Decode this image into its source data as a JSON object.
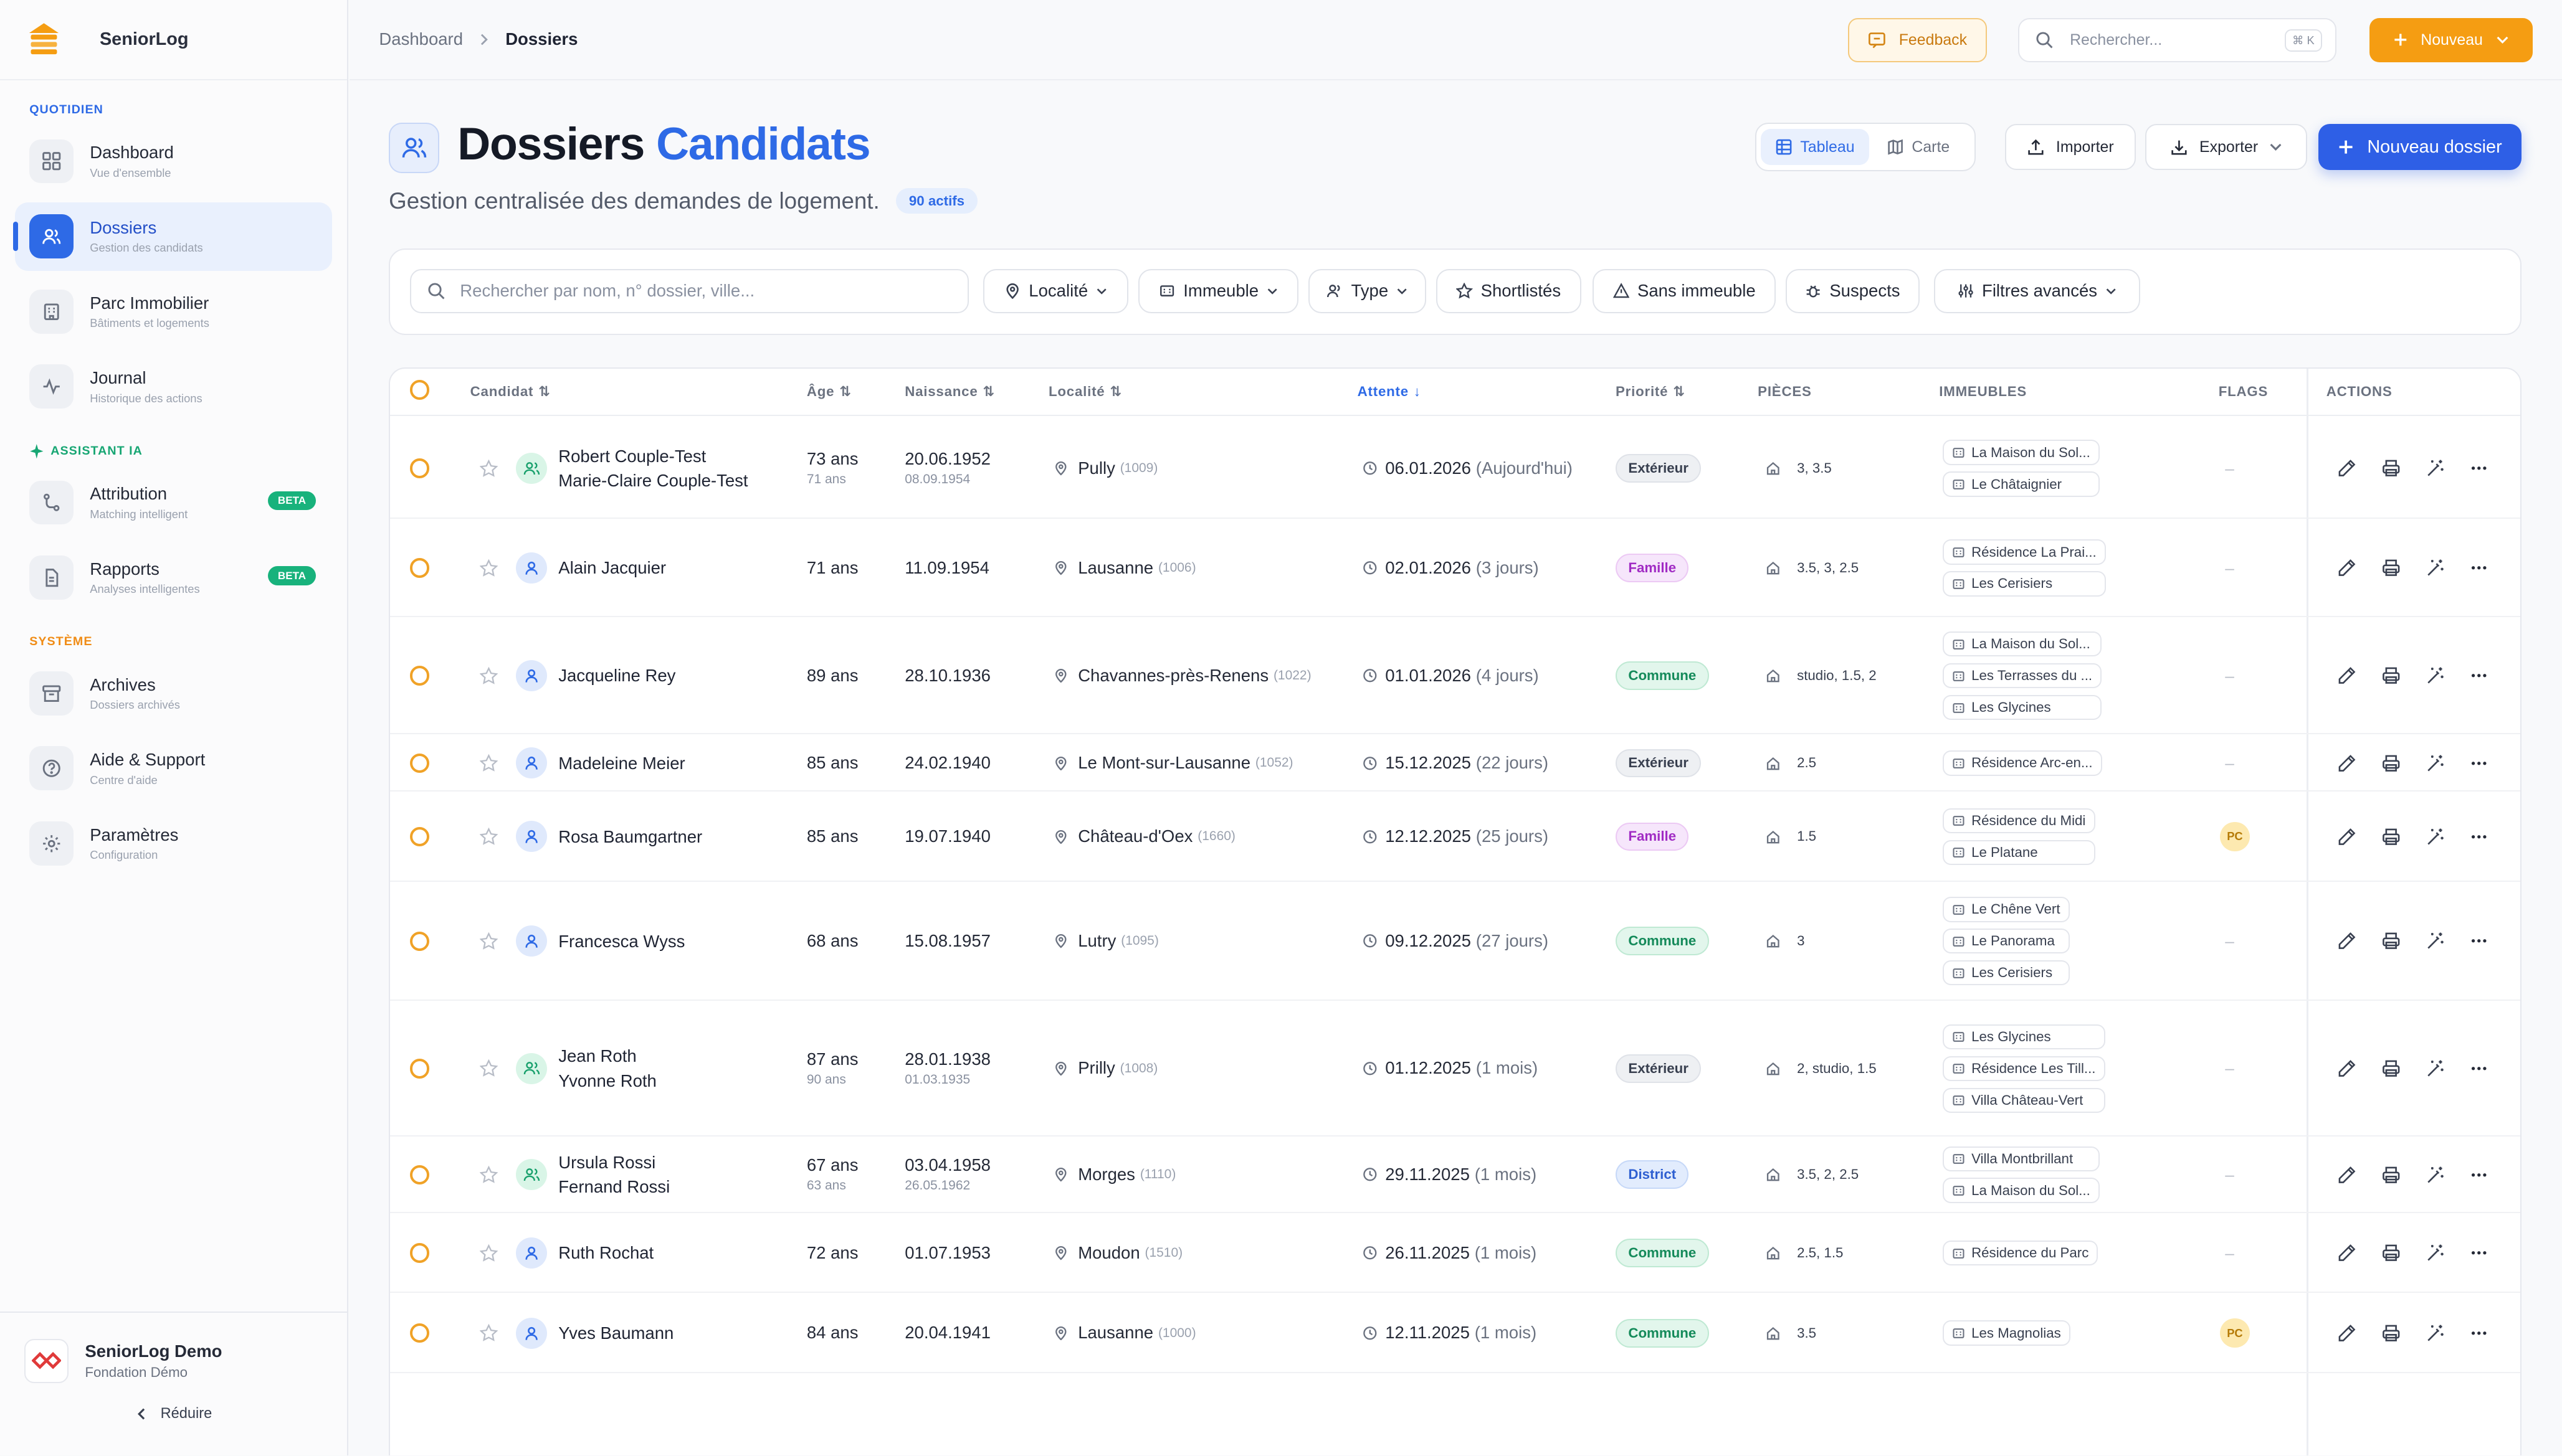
{
  "sidebar": {
    "brand": "SeniorLog",
    "sections": [
      {
        "label": "QUOTIDIEN",
        "items": [
          {
            "title": "Dashboard",
            "sub": "Vue d'ensemble",
            "icon": "grid-icon"
          },
          {
            "title": "Dossiers",
            "sub": "Gestion des candidats",
            "icon": "users-icon",
            "active": true
          },
          {
            "title": "Parc Immobilier",
            "sub": "Bâtiments et logements",
            "icon": "building-icon"
          },
          {
            "title": "Journal",
            "sub": "Historique des actions",
            "icon": "activity-icon"
          }
        ]
      },
      {
        "label": "ASSISTANT IA",
        "items": [
          {
            "title": "Attribution",
            "sub": "Matching intelligent",
            "icon": "route-icon",
            "badge": "BETA"
          },
          {
            "title": "Rapports",
            "sub": "Analyses intelligentes",
            "icon": "file-icon",
            "badge": "BETA"
          }
        ]
      },
      {
        "label": "SYSTÈME",
        "items": [
          {
            "title": "Archives",
            "sub": "Dossiers archivés",
            "icon": "archive-icon"
          },
          {
            "title": "Aide & Support",
            "sub": "Centre d'aide",
            "icon": "help-icon"
          },
          {
            "title": "Paramètres",
            "sub": "Configuration",
            "icon": "gear-icon"
          }
        ]
      }
    ],
    "org": {
      "name": "SeniorLog Demo",
      "sub": "Fondation Démo"
    },
    "reduce_label": "Réduire"
  },
  "topbar": {
    "breadcrumb": [
      "Dashboard",
      "Dossiers"
    ],
    "feedback_label": "Feedback",
    "search_placeholder": "Rechercher...",
    "search_kbd": "⌘ K",
    "new_label": "Nouveau"
  },
  "page": {
    "title_main": "Dossiers",
    "title_accent": "Candidats",
    "subtitle": "Gestion centralisée des demandes de logement.",
    "count_badge": "90 actifs",
    "view_table": "Tableau",
    "view_map": "Carte",
    "import_label": "Importer",
    "export_label": "Exporter",
    "new_dossier_label": "Nouveau dossier"
  },
  "filters": {
    "search_placeholder": "Rechercher par nom, n° dossier, ville...",
    "chips": [
      "Localité",
      "Immeuble",
      "Type",
      "Shortlistés",
      "Sans immeuble",
      "Suspects",
      "Filtres avancés"
    ]
  },
  "table": {
    "headers": {
      "candidat": "Candidat",
      "age": "Âge",
      "naissance": "Naissance",
      "localite": "Localité",
      "attente": "Attente",
      "priorite": "Priorité",
      "pieces": "PIÈCES",
      "immeubles": "IMMEUBLES",
      "flags": "FLAGS",
      "actions": "ACTIONS"
    },
    "rows": [
      {
        "names": [
          "Robert Couple-Test",
          "Marie-Claire Couple-Test"
        ],
        "couple": true,
        "age": "73 ans",
        "age2": "71 ans",
        "birth": "20.06.1952",
        "birth2": "08.09.1954",
        "city": "Pully",
        "npa": "(1009)",
        "wait": "06.01.2026",
        "wait_rel": "(Aujourd'hui)",
        "prio": "Extérieur",
        "prio_kind": "ext",
        "pieces": "3, 3.5",
        "imm": [
          "La Maison du Sol...",
          "Le Châtaignier"
        ],
        "flag": "–"
      },
      {
        "names": [
          "Alain Jacquier"
        ],
        "couple": false,
        "age": "71 ans",
        "birth": "11.09.1954",
        "city": "Lausanne",
        "npa": "(1006)",
        "wait": "02.01.2026",
        "wait_rel": "(3 jours)",
        "prio": "Famille",
        "prio_kind": "fam",
        "pieces": "3.5, 3, 2.5",
        "imm": [
          "Résidence La Prai...",
          "Les Cerisiers"
        ],
        "flag": "–"
      },
      {
        "names": [
          "Jacqueline Rey"
        ],
        "couple": false,
        "age": "89 ans",
        "birth": "28.10.1936",
        "city": "Chavannes-près-Renens",
        "npa": "(1022)",
        "wait": "01.01.2026",
        "wait_rel": "(4 jours)",
        "prio": "Commune",
        "prio_kind": "com",
        "pieces": "studio, 1.5, 2",
        "imm": [
          "La Maison du Sol...",
          "Les Terrasses du ...",
          "Les Glycines"
        ],
        "flag": "–"
      },
      {
        "names": [
          "Madeleine Meier"
        ],
        "couple": false,
        "age": "85 ans",
        "birth": "24.02.1940",
        "city": "Le Mont-sur-Lausanne",
        "npa": "(1052)",
        "wait": "15.12.2025",
        "wait_rel": "(22 jours)",
        "prio": "Extérieur",
        "prio_kind": "ext",
        "pieces": "2.5",
        "imm": [
          "Résidence Arc-en..."
        ],
        "flag": "–"
      },
      {
        "names": [
          "Rosa Baumgartner"
        ],
        "couple": false,
        "age": "85 ans",
        "birth": "19.07.1940",
        "city": "Château-d'Oex",
        "npa": "(1660)",
        "wait": "12.12.2025",
        "wait_rel": "(25 jours)",
        "prio": "Famille",
        "prio_kind": "fam",
        "pieces": "1.5",
        "imm": [
          "Résidence du Midi",
          "Le Platane"
        ],
        "flag": "PC"
      },
      {
        "names": [
          "Francesca Wyss"
        ],
        "couple": false,
        "age": "68 ans",
        "birth": "15.08.1957",
        "city": "Lutry",
        "npa": "(1095)",
        "wait": "09.12.2025",
        "wait_rel": "(27 jours)",
        "prio": "Commune",
        "prio_kind": "com",
        "pieces": "3",
        "imm": [
          "Le Chêne Vert",
          "Le Panorama",
          "Les Cerisiers"
        ],
        "flag": "–"
      },
      {
        "names": [
          "Jean Roth",
          "Yvonne Roth"
        ],
        "couple": true,
        "age": "87 ans",
        "age2": "90 ans",
        "birth": "28.01.1938",
        "birth2": "01.03.1935",
        "city": "Prilly",
        "npa": "(1008)",
        "wait": "01.12.2025",
        "wait_rel": "(1 mois)",
        "prio": "Extérieur",
        "prio_kind": "ext",
        "pieces": "2, studio, 1.5",
        "imm": [
          "Les Glycines",
          "Résidence Les Till...",
          "Villa Château-Vert"
        ],
        "flag": "–"
      },
      {
        "names": [
          "Ursula Rossi",
          "Fernand Rossi"
        ],
        "couple": true,
        "age": "67 ans",
        "age2": "63 ans",
        "birth": "03.04.1958",
        "birth2": "26.05.1962",
        "city": "Morges",
        "npa": "(1110)",
        "wait": "29.11.2025",
        "wait_rel": "(1 mois)",
        "prio": "District",
        "prio_kind": "dis",
        "pieces": "3.5, 2, 2.5",
        "imm": [
          "Villa Montbrillant",
          "La Maison du Sol..."
        ],
        "flag": "–"
      },
      {
        "names": [
          "Ruth Rochat"
        ],
        "couple": false,
        "age": "72 ans",
        "birth": "01.07.1953",
        "city": "Moudon",
        "npa": "(1510)",
        "wait": "26.11.2025",
        "wait_rel": "(1 mois)",
        "prio": "Commune",
        "prio_kind": "com",
        "pieces": "2.5, 1.5",
        "imm": [
          "Résidence du Parc"
        ],
        "flag": "–"
      },
      {
        "names": [
          "Yves Baumann"
        ],
        "couple": false,
        "age": "84 ans",
        "birth": "20.04.1941",
        "city": "Lausanne",
        "npa": "(1000)",
        "wait": "12.11.2025",
        "wait_rel": "(1 mois)",
        "prio": "Commune",
        "prio_kind": "com",
        "pieces": "3.5",
        "imm": [
          "Les Magnolias"
        ],
        "flag": "PC"
      }
    ]
  },
  "colors": {
    "accent": "#2e6ae6",
    "orange": "#f59d12",
    "green": "#18b27c"
  }
}
